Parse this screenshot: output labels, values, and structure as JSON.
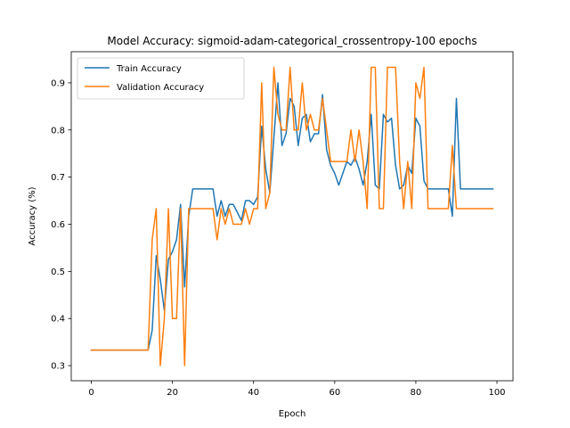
{
  "chart_data": {
    "type": "line",
    "title": "Model Accuracy: sigmoid-adam-categorical_crossentropy-100 epochs",
    "xlabel": "Epoch",
    "ylabel": "Accuracy (%)",
    "xlim": [
      -4.95,
      103.95
    ],
    "ylim": [
      0.268,
      0.966
    ],
    "xticks": [
      0,
      20,
      40,
      60,
      80,
      100
    ],
    "yticks": [
      0.3,
      0.4,
      0.5,
      0.6,
      0.7,
      0.8,
      0.9
    ],
    "grid": false,
    "legend_position": "top-left",
    "series": [
      {
        "name": "Train Accuracy",
        "color": "#1f77b4",
        "values": [
          0.333,
          0.333,
          0.333,
          0.333,
          0.333,
          0.333,
          0.333,
          0.333,
          0.333,
          0.333,
          0.333,
          0.333,
          0.333,
          0.333,
          0.333,
          0.375,
          0.533,
          0.483,
          0.417,
          0.525,
          0.542,
          0.567,
          0.642,
          0.467,
          0.617,
          0.675,
          0.675,
          0.675,
          0.675,
          0.675,
          0.675,
          0.617,
          0.65,
          0.617,
          0.642,
          0.642,
          0.625,
          0.608,
          0.65,
          0.65,
          0.642,
          0.658,
          0.808,
          0.717,
          0.667,
          0.783,
          0.9,
          0.767,
          0.792,
          0.867,
          0.85,
          0.767,
          0.825,
          0.833,
          0.775,
          0.792,
          0.792,
          0.875,
          0.758,
          0.725,
          0.708,
          0.683,
          0.708,
          0.733,
          0.725,
          0.742,
          0.717,
          0.683,
          0.733,
          0.833,
          0.683,
          0.675,
          0.833,
          0.817,
          0.825,
          0.725,
          0.675,
          0.683,
          0.725,
          0.708,
          0.825,
          0.808,
          0.692,
          0.675,
          0.675,
          0.675,
          0.675,
          0.675,
          0.675,
          0.617,
          0.867,
          0.675,
          0.675,
          0.675,
          0.675,
          0.675,
          0.675,
          0.675,
          0.675,
          0.675
        ]
      },
      {
        "name": "Validation Accuracy",
        "color": "#ff7f0e",
        "values": [
          0.333,
          0.333,
          0.333,
          0.333,
          0.333,
          0.333,
          0.333,
          0.333,
          0.333,
          0.333,
          0.333,
          0.333,
          0.333,
          0.333,
          0.333,
          0.567,
          0.633,
          0.3,
          0.4,
          0.633,
          0.4,
          0.4,
          0.633,
          0.3,
          0.633,
          0.633,
          0.633,
          0.633,
          0.633,
          0.633,
          0.633,
          0.567,
          0.633,
          0.6,
          0.633,
          0.6,
          0.6,
          0.6,
          0.633,
          0.6,
          0.633,
          0.633,
          0.9,
          0.633,
          0.667,
          0.933,
          0.833,
          0.8,
          0.8,
          0.933,
          0.8,
          0.8,
          0.9,
          0.8,
          0.833,
          0.8,
          0.8,
          0.867,
          0.8,
          0.733,
          0.733,
          0.733,
          0.733,
          0.733,
          0.8,
          0.733,
          0.8,
          0.733,
          0.633,
          0.933,
          0.933,
          0.633,
          0.633,
          0.933,
          0.933,
          0.933,
          0.733,
          0.633,
          0.733,
          0.633,
          0.9,
          0.867,
          0.933,
          0.633,
          0.633,
          0.633,
          0.633,
          0.633,
          0.633,
          0.767,
          0.633,
          0.633,
          0.633,
          0.633,
          0.633,
          0.633,
          0.633,
          0.633,
          0.633,
          0.633
        ]
      }
    ]
  }
}
